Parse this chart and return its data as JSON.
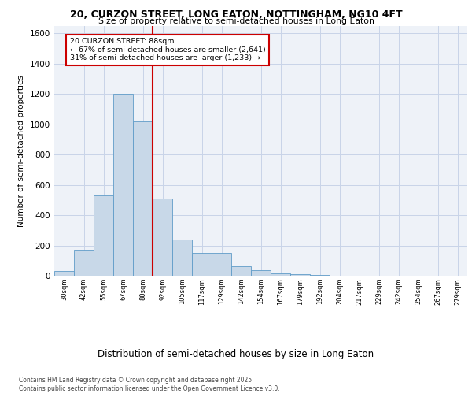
{
  "title_line1": "20, CURZON STREET, LONG EATON, NOTTINGHAM, NG10 4FT",
  "title_line2": "Size of property relative to semi-detached houses in Long Eaton",
  "xlabel": "Distribution of semi-detached houses by size in Long Eaton",
  "ylabel": "Number of semi-detached properties",
  "footnote": "Contains HM Land Registry data © Crown copyright and database right 2025.\nContains public sector information licensed under the Open Government Licence v3.0.",
  "bin_labels": [
    "30sqm",
    "42sqm",
    "55sqm",
    "67sqm",
    "80sqm",
    "92sqm",
    "105sqm",
    "117sqm",
    "129sqm",
    "142sqm",
    "154sqm",
    "167sqm",
    "179sqm",
    "192sqm",
    "204sqm",
    "217sqm",
    "229sqm",
    "242sqm",
    "254sqm",
    "267sqm",
    "279sqm"
  ],
  "bin_values": [
    30,
    170,
    530,
    1200,
    1020,
    510,
    240,
    150,
    150,
    60,
    35,
    15,
    10,
    5,
    2,
    1,
    0,
    0,
    0,
    0,
    0
  ],
  "bar_color": "#c8d8e8",
  "bar_edge_color": "#5f9cc8",
  "property_label": "20 CURZON STREET: 88sqm",
  "pct_smaller": 67,
  "count_smaller": 2641,
  "pct_larger": 31,
  "count_larger": 1233,
  "red_line_color": "#cc0000",
  "annotation_box_color": "#cc0000",
  "background_color": "#eef2f8",
  "ylim": [
    0,
    1650
  ],
  "yticks": [
    0,
    200,
    400,
    600,
    800,
    1000,
    1200,
    1400,
    1600
  ],
  "grid_color": "#c8d4e8"
}
